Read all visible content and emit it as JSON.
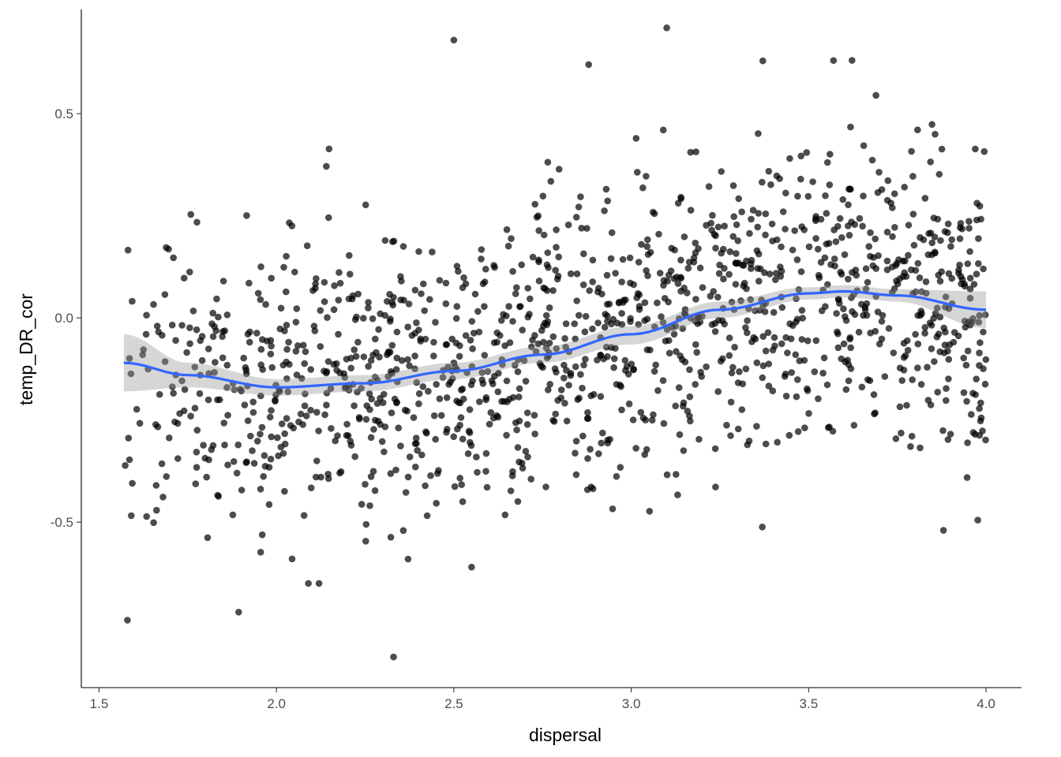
{
  "chart_data": {
    "type": "scatter",
    "title": "",
    "xlabel": "dispersal",
    "ylabel": "temp_DR_cor",
    "xlim": [
      1.45,
      4.1
    ],
    "ylim": [
      -0.905,
      0.755
    ],
    "x_ticks": [
      1.5,
      2.0,
      2.5,
      3.0,
      3.5,
      4.0
    ],
    "x_tick_labels": [
      "1.5",
      "2.0",
      "2.5",
      "3.0",
      "3.5",
      "4.0"
    ],
    "y_ticks": [
      -0.5,
      0.0,
      0.5
    ],
    "y_tick_labels": [
      "-0.5",
      "0.0",
      "0.5"
    ],
    "grid": false,
    "legend": "none",
    "point_color": "#000000",
    "point_alpha": 0.7,
    "point_count_approx": 1400,
    "x_range_points": [
      1.57,
      4.0
    ],
    "smooth": {
      "method": "loess",
      "color": "#3366FF",
      "ribbon_color": "#999999",
      "ribbon_alpha": 0.4,
      "x": [
        1.57,
        1.75,
        2.0,
        2.25,
        2.5,
        2.75,
        3.0,
        3.25,
        3.5,
        3.6,
        3.75,
        4.0
      ],
      "y": [
        -0.11,
        -0.14,
        -0.17,
        -0.16,
        -0.13,
        -0.09,
        -0.04,
        0.02,
        0.06,
        0.065,
        0.055,
        0.02
      ],
      "ymin": [
        -0.18,
        -0.17,
        -0.19,
        -0.18,
        -0.15,
        -0.11,
        -0.065,
        0.0,
        0.045,
        0.05,
        0.04,
        -0.025
      ],
      "ymax": [
        -0.04,
        -0.11,
        -0.15,
        -0.14,
        -0.11,
        -0.07,
        -0.02,
        0.04,
        0.075,
        0.08,
        0.07,
        0.065
      ]
    },
    "notable_points": [
      {
        "x": 1.58,
        "y": -0.74
      },
      {
        "x": 2.33,
        "y": -0.83
      },
      {
        "x": 3.1,
        "y": 0.71
      },
      {
        "x": 2.5,
        "y": 0.68
      },
      {
        "x": 3.57,
        "y": 0.63
      },
      {
        "x": 2.88,
        "y": 0.62
      },
      {
        "x": 2.09,
        "y": -0.65
      },
      {
        "x": 2.12,
        "y": -0.65
      },
      {
        "x": 2.55,
        "y": -0.61
      },
      {
        "x": 3.88,
        "y": -0.52
      }
    ]
  }
}
